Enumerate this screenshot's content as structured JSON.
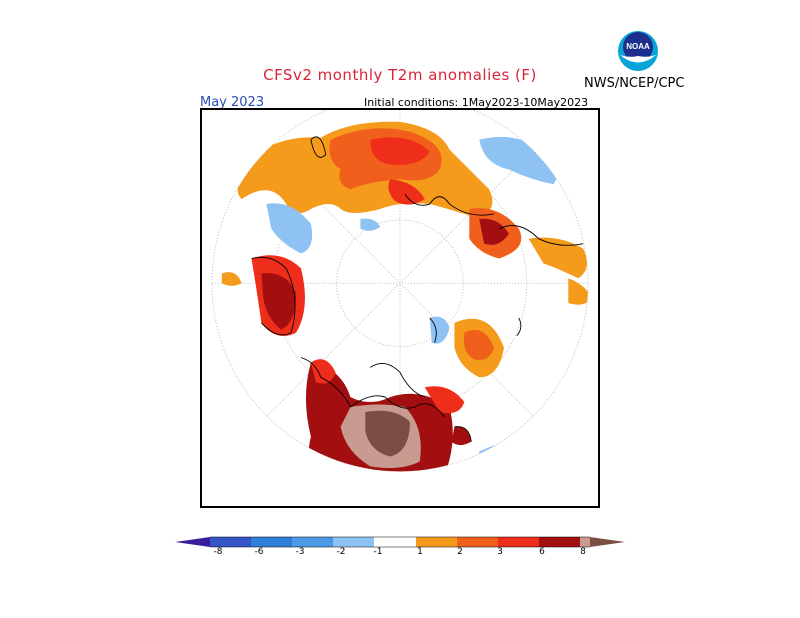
{
  "header": {
    "title": "CFSv2 monthly T2m anomalies (F)",
    "org": "NWS/NCEP/CPC",
    "month": "May 2023",
    "initial_conditions": "Initial conditions: 1May2023-10May2023"
  },
  "logo": {
    "text": "NOAA"
  },
  "colorbar": {
    "labels": [
      "-8",
      "-6",
      "-3",
      "-2",
      "-1",
      "1",
      "2",
      "3",
      "6",
      "8"
    ],
    "colors": [
      "#3a1e9a",
      "#3655c8",
      "#2f7fd8",
      "#4a9ae6",
      "#8ec2f2",
      "#ffffff",
      "#f59b1b",
      "#f0601c",
      "#ee2e1a",
      "#a30f10",
      "#c89b90",
      "#7a4e44"
    ]
  },
  "map_colors": {
    "orange": "#f59b1b",
    "red_orange": "#f0601c",
    "red": "#ee2e1a",
    "dark_red": "#a30f10",
    "pink": "#c89b90",
    "brown": "#7a4e44",
    "light_blue": "#8ec2f2",
    "blue": "#4a9ae6"
  }
}
